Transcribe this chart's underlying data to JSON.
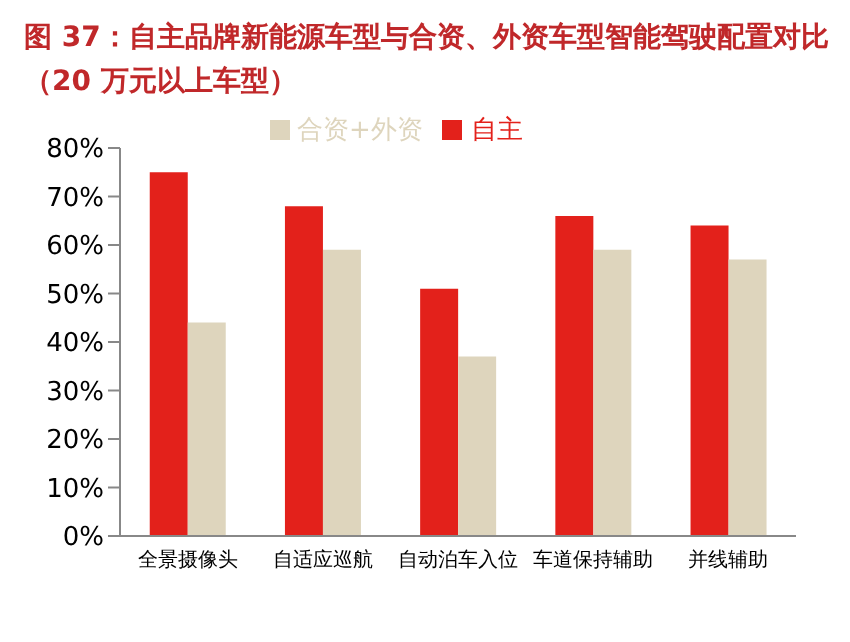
{
  "chart_data": {
    "type": "bar",
    "title": "图 37：自主品牌新能源车型与合资、外资车型智能驾驶配置对比（20 万元以上车型）",
    "categories": [
      "全景摄像头",
      "自适应巡航",
      "自动泊车入位",
      "车道保持辅助",
      "并线辅助"
    ],
    "series": [
      {
        "name": "自主",
        "color": "#e3211b",
        "values": [
          75,
          68,
          51,
          66,
          64
        ]
      },
      {
        "name": "合资+外资",
        "color": "#ded5bd",
        "values": [
          44,
          59,
          37,
          59,
          57
        ]
      }
    ],
    "ylim": [
      0,
      80
    ],
    "yticks": [
      {
        "value": 0,
        "label": "0%"
      },
      {
        "value": 10,
        "label": "10%"
      },
      {
        "value": 20,
        "label": "20%"
      },
      {
        "value": 30,
        "label": "30%"
      },
      {
        "value": 40,
        "label": "40%"
      },
      {
        "value": 50,
        "label": "50%"
      },
      {
        "value": 60,
        "label": "60%"
      },
      {
        "value": 70,
        "label": "70%"
      },
      {
        "value": 80,
        "label": "80%"
      }
    ],
    "legend": "top",
    "grid": false
  }
}
